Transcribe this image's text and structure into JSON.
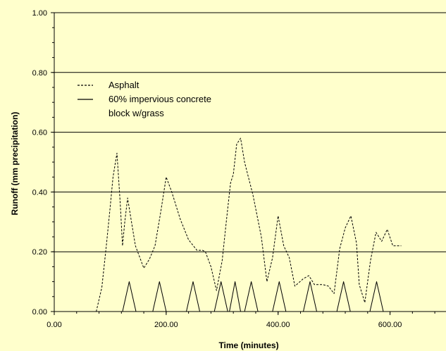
{
  "colors": {
    "background": "#ffffcc",
    "plot_background": "#ffffcc",
    "gridline": "#000000",
    "series": "#000000"
  },
  "chart_data": {
    "type": "line",
    "title": "",
    "xlabel": "Time (minutes)",
    "ylabel": "Runoff (mm precipitation)",
    "xlim": [
      0,
      700
    ],
    "ylim": [
      0,
      1
    ],
    "x_ticks": [
      0,
      200,
      400,
      600
    ],
    "x_tick_labels": [
      "0.00",
      "200.00",
      "400.00",
      "600.00"
    ],
    "y_ticks": [
      0,
      0.2,
      0.4,
      0.6,
      0.8,
      1.0
    ],
    "y_tick_labels": [
      "0.00",
      "0.20",
      "0.40",
      "0.60",
      "0.80",
      "1.00"
    ],
    "grid": "horizontal major gridlines",
    "legend_position": "top-left",
    "series": [
      {
        "name": "Asphalt",
        "style": "dashed",
        "x": [
          75,
          85,
          93,
          100,
          105,
          112,
          118,
          122,
          126,
          131,
          138,
          145,
          160,
          170,
          180,
          190,
          200,
          210,
          225,
          240,
          255,
          265,
          270,
          280,
          290,
          300,
          308,
          315,
          320,
          326,
          333,
          340,
          355,
          370,
          380,
          390,
          400,
          410,
          420,
          430,
          445,
          455,
          465,
          480,
          490,
          500,
          510,
          520,
          530,
          540,
          545,
          555,
          565,
          575,
          585,
          595,
          605,
          620
        ],
        "y": [
          0.0,
          0.08,
          0.22,
          0.35,
          0.45,
          0.53,
          0.36,
          0.22,
          0.3,
          0.38,
          0.3,
          0.22,
          0.145,
          0.175,
          0.22,
          0.33,
          0.45,
          0.4,
          0.31,
          0.24,
          0.205,
          0.205,
          0.2,
          0.15,
          0.07,
          0.17,
          0.31,
          0.43,
          0.46,
          0.56,
          0.58,
          0.5,
          0.39,
          0.25,
          0.1,
          0.18,
          0.32,
          0.22,
          0.18,
          0.085,
          0.11,
          0.12,
          0.09,
          0.09,
          0.085,
          0.06,
          0.21,
          0.28,
          0.32,
          0.23,
          0.09,
          0.03,
          0.17,
          0.265,
          0.235,
          0.275,
          0.22,
          0.22
        ]
      },
      {
        "name": "60% impervious concrete block w/grass",
        "style": "solid",
        "x": [
          122,
          134,
          146,
          176,
          188,
          200,
          236,
          248,
          260,
          286,
          298,
          310,
          313,
          323,
          333,
          340,
          352,
          364,
          390,
          402,
          414,
          445,
          457,
          469,
          505,
          517,
          529,
          564,
          576,
          588
        ],
        "y": [
          0,
          0.1,
          0,
          0,
          0.1,
          0,
          0,
          0.1,
          0,
          0,
          0.1,
          0,
          0,
          0.1,
          0,
          0,
          0.1,
          0,
          0,
          0.1,
          0,
          0,
          0.1,
          0,
          0,
          0.1,
          0,
          0,
          0.1,
          0
        ]
      }
    ],
    "legend": {
      "entries": [
        {
          "style": "dashed",
          "lines": [
            "Asphalt"
          ]
        },
        {
          "style": "solid",
          "lines": [
            "60% impervious concrete",
            "block w/grass"
          ]
        }
      ]
    }
  }
}
